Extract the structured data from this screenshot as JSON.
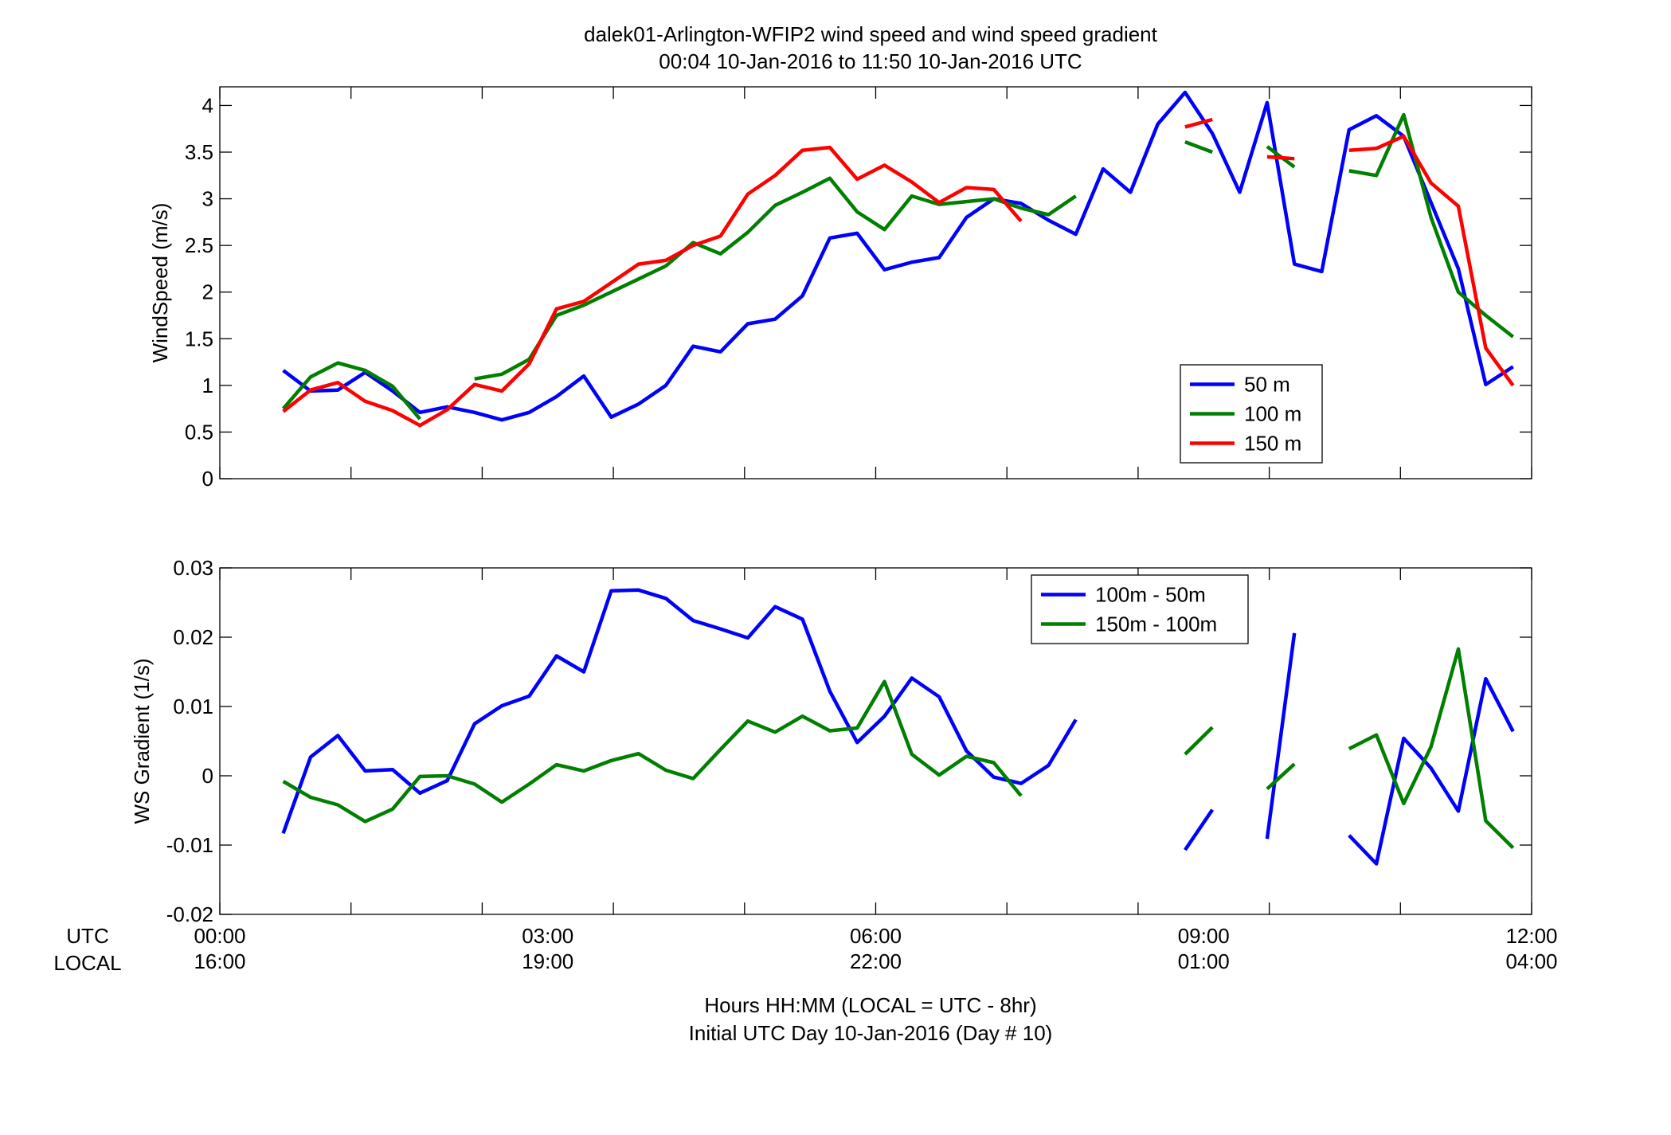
{
  "figure": {
    "title_line1": "dalek01-Arlington-WFIP2  wind speed and wind speed gradient",
    "title_line2": "00:04 10-Jan-2016 to 11:50 10-Jan-2016  UTC",
    "xlabel_line1": "Hours HH:MM  (LOCAL = UTC - 8hr)",
    "xlabel_line2": "Initial UTC Day 10-Jan-2016 (Day # 10)",
    "row_label_utc": "UTC",
    "row_label_local": "LOCAL",
    "x_ticks_utc": [
      "00:00",
      "03:00",
      "06:00",
      "09:00",
      "12:00"
    ],
    "x_ticks_local": [
      "16:00",
      "19:00",
      "22:00",
      "01:00",
      "04:00"
    ]
  },
  "chart_data": [
    {
      "type": "line",
      "ylabel": "WindSpeed (m/s)",
      "xlim": [
        0,
        12
      ],
      "ylim": [
        0,
        4.2
      ],
      "y_ticks": [
        "0",
        "0.5",
        "1",
        "1.5",
        "2",
        "2.5",
        "3",
        "3.5",
        "4"
      ],
      "x_ticks": [
        0,
        1.2,
        2.4,
        3.6,
        4.8,
        6,
        7.2,
        8.4,
        9.6,
        10.8,
        12
      ],
      "legend_position": "right-middle",
      "x_unit": "hours UTC",
      "x": [
        0.58,
        0.83,
        1.08,
        1.33,
        1.58,
        1.83,
        2.08,
        2.33,
        2.58,
        2.83,
        3.08,
        3.33,
        3.58,
        3.83,
        4.08,
        4.33,
        4.58,
        4.83,
        5.08,
        5.33,
        5.58,
        5.83,
        6.08,
        6.33,
        6.58,
        6.83,
        7.08,
        7.33,
        7.58,
        7.83,
        8.08,
        8.33,
        8.58,
        8.83,
        9.08,
        9.33,
        9.58,
        9.83,
        10.08,
        10.33,
        10.58,
        10.83,
        11.08,
        11.33,
        11.58,
        11.83
      ],
      "series": [
        {
          "name": "50 m",
          "color": "#0000ff",
          "values": [
            1.16,
            0.94,
            0.95,
            1.14,
            0.94,
            0.71,
            0.77,
            0.71,
            0.63,
            0.71,
            0.88,
            1.1,
            0.66,
            0.8,
            1.0,
            1.42,
            1.36,
            1.66,
            1.71,
            1.96,
            2.58,
            2.63,
            2.24,
            2.32,
            2.37,
            2.8,
            3.0,
            2.95,
            2.77,
            2.62,
            3.32,
            3.07,
            3.8,
            4.14,
            3.7,
            3.07,
            4.03,
            2.3,
            2.22,
            3.74,
            3.89,
            3.67,
            2.96,
            2.25,
            1.01,
            1.2
          ]
        },
        {
          "name": "100 m",
          "color": "#007f00",
          "values": [
            0.75,
            1.09,
            1.24,
            1.16,
            0.99,
            0.64,
            null,
            1.07,
            1.12,
            1.28,
            1.75,
            1.86,
            2.0,
            2.14,
            2.28,
            2.53,
            2.41,
            2.64,
            2.93,
            3.07,
            3.22,
            2.86,
            2.67,
            3.03,
            2.94,
            2.97,
            3.0,
            2.9,
            2.83,
            3.03,
            null,
            null,
            null,
            3.61,
            3.5,
            null,
            3.56,
            3.34,
            null,
            3.3,
            3.25,
            3.9,
            2.8,
            2.0,
            1.75,
            1.52
          ]
        },
        {
          "name": "150 m",
          "color": "#ff0000",
          "values": [
            0.72,
            0.95,
            1.03,
            0.83,
            0.73,
            0.57,
            0.74,
            1.01,
            0.94,
            1.23,
            1.82,
            1.9,
            2.1,
            2.3,
            2.34,
            2.5,
            2.6,
            3.05,
            3.25,
            3.52,
            3.55,
            3.21,
            3.36,
            3.18,
            2.96,
            3.12,
            3.1,
            2.76,
            null,
            null,
            null,
            null,
            null,
            3.77,
            3.85,
            null,
            3.45,
            3.43,
            null,
            3.52,
            3.54,
            3.67,
            3.17,
            2.92,
            1.4,
            1.0
          ]
        }
      ]
    },
    {
      "type": "line",
      "ylabel": "WS Gradient (1/s)",
      "xlim": [
        0,
        12
      ],
      "ylim": [
        -0.02,
        0.03
      ],
      "y_ticks": [
        "-0.02",
        "-0.01",
        "0",
        "0.01",
        "0.02",
        "0.03"
      ],
      "x_ticks": [
        0,
        1.2,
        2.4,
        3.6,
        4.8,
        6,
        7.2,
        8.4,
        9.6,
        10.8,
        12
      ],
      "legend_position": "top-right",
      "x_unit": "hours UTC",
      "x": [
        0.58,
        0.83,
        1.08,
        1.33,
        1.58,
        1.83,
        2.08,
        2.33,
        2.58,
        2.83,
        3.08,
        3.33,
        3.58,
        3.83,
        4.08,
        4.33,
        4.58,
        4.83,
        5.08,
        5.33,
        5.58,
        5.83,
        6.08,
        6.33,
        6.58,
        6.83,
        7.08,
        7.33,
        7.58,
        7.83,
        8.08,
        8.33,
        8.58,
        8.83,
        9.08,
        9.33,
        9.58,
        9.83,
        10.08,
        10.33,
        10.58,
        10.83,
        11.08,
        11.33,
        11.58,
        11.83
      ],
      "series": [
        {
          "name": "100m - 50m",
          "color": "#0000ff",
          "values": [
            -0.0083,
            0.0027,
            0.0058,
            0.0007,
            0.0009,
            -0.0025,
            -0.0007,
            0.0075,
            0.0101,
            0.0115,
            0.0173,
            0.015,
            0.0267,
            0.0268,
            0.0256,
            0.0224,
            0.0212,
            0.0199,
            0.0244,
            0.0226,
            0.0122,
            0.0048,
            0.0086,
            0.0141,
            0.0114,
            0.0036,
            -0.0002,
            -0.0011,
            0.0015,
            0.0081,
            null,
            null,
            null,
            -0.0107,
            -0.0049,
            null,
            -0.0091,
            0.0206,
            null,
            -0.0086,
            -0.0127,
            0.0054,
            0.0011,
            -0.0051,
            0.014,
            0.0064
          ]
        },
        {
          "name": "150m - 100m",
          "color": "#007f00",
          "values": [
            -0.0008,
            -0.0031,
            -0.0042,
            -0.0066,
            -0.0048,
            -0.0001,
            0.0,
            -0.0012,
            -0.0038,
            -0.0012,
            0.0016,
            0.0007,
            0.0022,
            0.0032,
            0.0008,
            -0.0004,
            0.0038,
            0.0079,
            0.0063,
            0.0086,
            0.0065,
            0.0069,
            0.0136,
            0.0031,
            0.0001,
            0.0028,
            0.0019,
            -0.0029,
            null,
            null,
            null,
            null,
            null,
            0.0031,
            0.007,
            null,
            -0.0019,
            0.0017,
            null,
            0.0039,
            0.0059,
            -0.004,
            0.0042,
            0.0183,
            -0.0065,
            -0.0104
          ]
        }
      ]
    }
  ]
}
